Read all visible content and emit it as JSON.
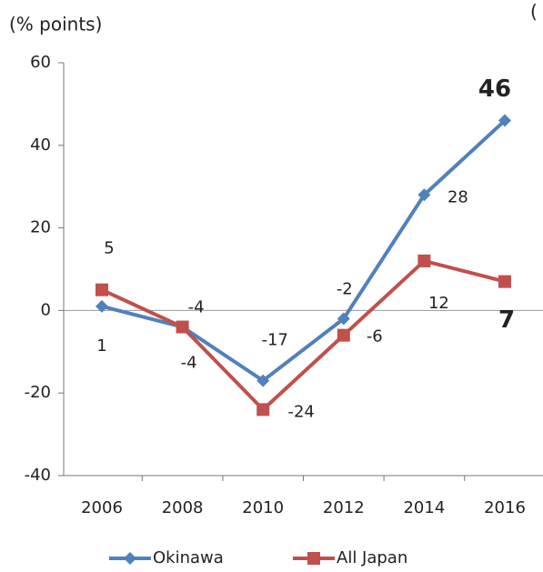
{
  "chart_data": {
    "type": "line",
    "title": "(% points)",
    "annotation": "(",
    "categories": [
      "2006",
      "2008",
      "2010",
      "2012",
      "2014",
      "2016"
    ],
    "series": [
      {
        "name": "Okinawa",
        "color": "#4f81bd",
        "label_color": "#3b8fd4",
        "values": [
          1,
          -4,
          -17,
          -2,
          28,
          46
        ]
      },
      {
        "name": "All Japan",
        "color": "#c0504d",
        "label_color": "#d26a66",
        "values": [
          5,
          -4,
          -24,
          -6,
          12,
          7
        ]
      }
    ],
    "highlight_color": "#ff0000",
    "ylim": [
      -40,
      60
    ],
    "yticks": [
      -40,
      -20,
      0,
      20,
      40,
      60
    ],
    "legend": "bottom"
  }
}
